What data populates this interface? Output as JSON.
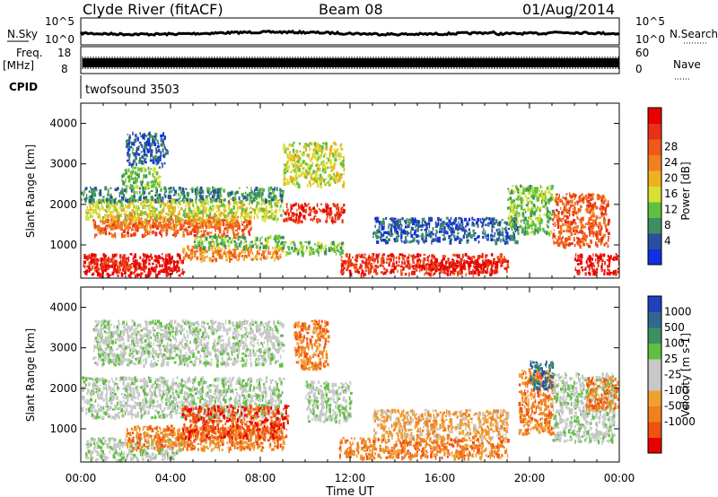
{
  "header": {
    "title": "Clyde River (fitACF)",
    "beam": "Beam 08",
    "date": "01/Aug/2014"
  },
  "labels": {
    "nsky": "N.Sky",
    "nsearch": "N.Search",
    "freq": "Freq.",
    "mhz": "[MHz]",
    "nave": "Nave",
    "cpid": "CPID",
    "cpid_value": "twofsound 3503"
  },
  "strip_ticks": {
    "noise_left": [
      "10^5",
      "10^0"
    ],
    "noise_right": [
      "10^5",
      "10^0"
    ],
    "freq_left": [
      "18",
      "8"
    ],
    "freq_right": [
      "60",
      "0"
    ]
  },
  "chart_data": [
    {
      "type": "heatmap",
      "panel": "power",
      "ylabel": "Slant Range [km]",
      "xlim": [
        "00:00",
        "24:00"
      ],
      "ylim": [
        180,
        4500
      ],
      "xticks": [
        "00:00",
        "04:00",
        "08:00",
        "12:00",
        "16:00",
        "20:00",
        "00:00"
      ],
      "yticks": [
        1000,
        2000,
        3000,
        4000
      ],
      "colorbar": {
        "label": "Power [dB]",
        "ticks": [
          "4",
          "8",
          "12",
          "16",
          "20",
          "24",
          "28"
        ],
        "colors": [
          "#1030e0",
          "#2a4fa0",
          "#3c8f60",
          "#60c040",
          "#d8e030",
          "#f0b020",
          "#f08020",
          "#f05818",
          "#e83018",
          "#e80000"
        ]
      },
      "regions": [
        {
          "x0": 0.1,
          "x1": 4.6,
          "y0": 260,
          "y1": 800,
          "level": 9
        },
        {
          "x0": 0.3,
          "x1": 2.5,
          "y0": 380,
          "y1": 700,
          "level": 8
        },
        {
          "x0": 0.5,
          "x1": 7.6,
          "y0": 1250,
          "y1": 1650,
          "level": 7
        },
        {
          "x0": 1.0,
          "x1": 7.0,
          "y0": 1450,
          "y1": 1800,
          "level": 6
        },
        {
          "x0": 0.2,
          "x1": 9.0,
          "y0": 1650,
          "y1": 2150,
          "level": 4
        },
        {
          "x0": 0.0,
          "x1": 9.0,
          "y0": 2100,
          "y1": 2450,
          "level": 2
        },
        {
          "x0": 4.5,
          "x1": 9.0,
          "y0": 650,
          "y1": 1000,
          "level": 6
        },
        {
          "x0": 5.0,
          "x1": 9.0,
          "y0": 950,
          "y1": 1250,
          "level": 3
        },
        {
          "x0": 2.0,
          "x1": 3.8,
          "y0": 3000,
          "y1": 3800,
          "level": 1
        },
        {
          "x0": 1.8,
          "x1": 3.5,
          "y0": 2450,
          "y1": 2950,
          "level": 3
        },
        {
          "x0": 9.0,
          "x1": 11.7,
          "y0": 1600,
          "y1": 2050,
          "level": 8
        },
        {
          "x0": 9.0,
          "x1": 11.7,
          "y0": 2500,
          "y1": 3550,
          "level": 4
        },
        {
          "x0": 9.0,
          "x1": 11.7,
          "y0": 800,
          "y1": 1100,
          "level": 3
        },
        {
          "x0": 11.5,
          "x1": 19.0,
          "y0": 300,
          "y1": 800,
          "level": 8
        },
        {
          "x0": 15.5,
          "x1": 18.5,
          "y0": 350,
          "y1": 650,
          "level": 9
        },
        {
          "x0": 13.0,
          "x1": 19.5,
          "y0": 1100,
          "y1": 1700,
          "level": 1
        },
        {
          "x0": 19.0,
          "x1": 21.0,
          "y0": 1300,
          "y1": 2500,
          "level": 3
        },
        {
          "x0": 21.0,
          "x1": 23.5,
          "y0": 1000,
          "y1": 2300,
          "level": 7
        },
        {
          "x0": 22.0,
          "x1": 24.0,
          "y0": 300,
          "y1": 800,
          "level": 9
        }
      ]
    },
    {
      "type": "heatmap",
      "panel": "velocity",
      "ylabel": "Slant Range [km]",
      "xlabel": "Time UT",
      "xlim": [
        "00:00",
        "24:00"
      ],
      "ylim": [
        180,
        4500
      ],
      "xticks": [
        "00:00",
        "04:00",
        "08:00",
        "12:00",
        "16:00",
        "20:00",
        "00:00"
      ],
      "yticks": [
        1000,
        2000,
        3000,
        4000
      ],
      "colorbar": {
        "label": "Velocity [m s-1]",
        "ticks": [
          "1000",
          "500",
          "100",
          "25",
          "-25",
          "-100",
          "-500",
          "-1000"
        ],
        "colors": [
          "#2040c0",
          "#306890",
          "#3c8f60",
          "#60c040",
          "#c8c8c8",
          "#c8c8c8",
          "#f0a030",
          "#f08020",
          "#f05010",
          "#e80000"
        ]
      },
      "regions": [
        {
          "x0": 0.0,
          "x1": 9.0,
          "y0": 1300,
          "y1": 2300,
          "level": 4
        },
        {
          "x0": 0.2,
          "x1": 4.5,
          "y0": 250,
          "y1": 800,
          "level": 4
        },
        {
          "x0": 2.0,
          "x1": 9.0,
          "y0": 500,
          "y1": 1100,
          "level": 7
        },
        {
          "x0": 4.5,
          "x1": 9.2,
          "y0": 800,
          "y1": 1600,
          "level": 8
        },
        {
          "x0": 0.5,
          "x1": 9.0,
          "y0": 2600,
          "y1": 3700,
          "level": 4
        },
        {
          "x0": 9.5,
          "x1": 11.0,
          "y0": 2500,
          "y1": 3700,
          "level": 7
        },
        {
          "x0": 10.0,
          "x1": 12.0,
          "y0": 1200,
          "y1": 2200,
          "level": 4
        },
        {
          "x0": 11.5,
          "x1": 19.0,
          "y0": 300,
          "y1": 800,
          "level": 7
        },
        {
          "x0": 13.0,
          "x1": 19.0,
          "y0": 800,
          "y1": 1500,
          "level": 6
        },
        {
          "x0": 19.5,
          "x1": 21.0,
          "y0": 900,
          "y1": 2500,
          "level": 7
        },
        {
          "x0": 21.0,
          "x1": 23.8,
          "y0": 700,
          "y1": 2400,
          "level": 4
        },
        {
          "x0": 22.5,
          "x1": 24.0,
          "y0": 1500,
          "y1": 2300,
          "level": 7
        },
        {
          "x0": 20.0,
          "x1": 21.0,
          "y0": 2000,
          "y1": 2700,
          "level": 1
        }
      ]
    }
  ],
  "xaxis": {
    "ticks": [
      "00:00",
      "04:00",
      "08:00",
      "12:00",
      "16:00",
      "20:00",
      "00:00"
    ],
    "label": "Time UT"
  }
}
